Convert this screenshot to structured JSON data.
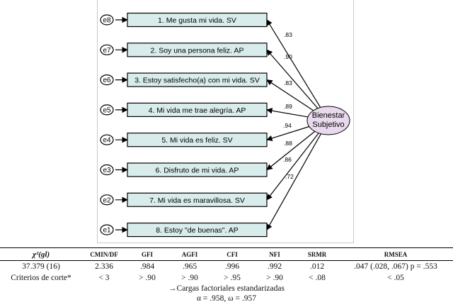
{
  "diagram": {
    "factor": {
      "line1": "Bienestar",
      "line2": "Subjetivo"
    },
    "items": [
      {
        "error": "e8",
        "label": "1. Me gusta mi vida. SV",
        "loading": ".83"
      },
      {
        "error": "e7",
        "label": "2. Soy una persona feliz. AP",
        "loading": ".90"
      },
      {
        "error": "e6",
        "label": "3. Estoy satisfecho(a) con mi vida. SV",
        "loading": ".83"
      },
      {
        "error": "e5",
        "label": "4. Mi vida me trae alegría. AP",
        "loading": ".89"
      },
      {
        "error": "e4",
        "label": "5. Mi vida es feliz. SV",
        "loading": ".94"
      },
      {
        "error": "e3",
        "label": "6. Disfruto de mi vida. AP",
        "loading": ".88"
      },
      {
        "error": "e2",
        "label": "7. Mi vida es maravillosa. SV",
        "loading": ".86"
      },
      {
        "error": "e1",
        "label": "8. Estoy \"de buenas\". AP",
        "loading": ".72"
      }
    ],
    "colors": {
      "item_fill": "#d9ecec",
      "factor_fill": "#e9d9ec",
      "stroke": "#000000",
      "frame": "#c8c8c8"
    }
  },
  "fit_table": {
    "headers": [
      "χ²(gl)",
      "CMIN/DF",
      "GFI",
      "AGFI",
      "CFI",
      "NFI",
      "SRMR",
      "RMSEA"
    ],
    "values_row": [
      "37.379 (16)",
      "2.336",
      ".984",
      ".965",
      ".996",
      ".992",
      ".012",
      ".047 (.028, .067) p = .553"
    ],
    "criteria_row": [
      "Criterios de corte*",
      "< 3",
      "> .90",
      "> .90",
      "> .95",
      "> .90",
      "< .08",
      "< .05"
    ],
    "note_1": "→Cargas factoriales estandarizadas",
    "note_2": "α = .958, ω = .957"
  }
}
